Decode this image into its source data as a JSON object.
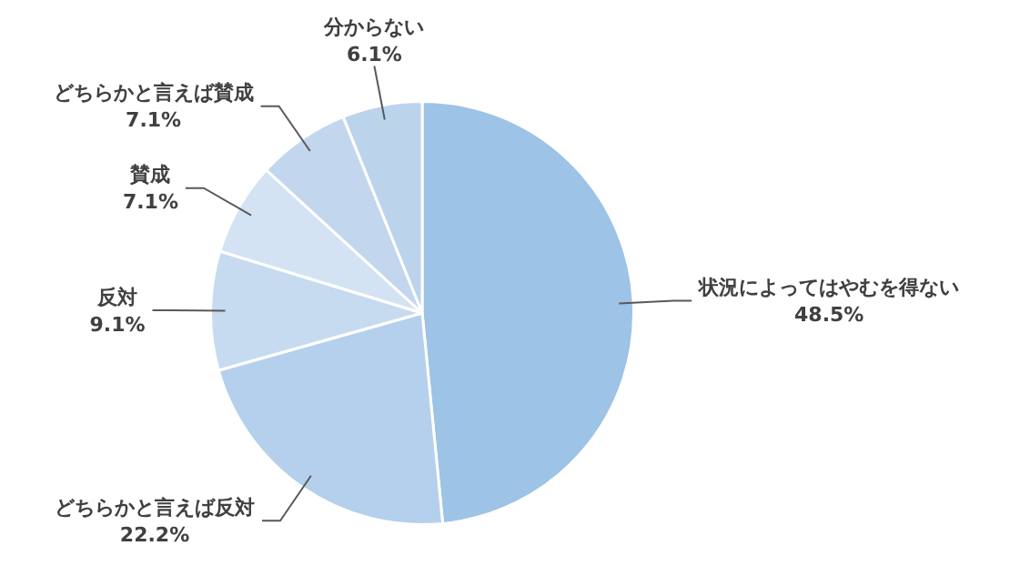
{
  "chart_data": {
    "type": "pie",
    "categories": [
      "状況によってはやむを得ない",
      "どちらかと言えば反対",
      "反対",
      "賛成",
      "どちらかと言えば賛成",
      "分からない"
    ],
    "values": [
      48.5,
      22.2,
      9.1,
      7.1,
      7.1,
      6.1
    ],
    "value_labels": [
      "48.5%",
      "22.2%",
      "9.1%",
      "7.1%",
      "7.1%",
      "6.1%"
    ],
    "colors": [
      "#9dc3e6",
      "#b5d0ec",
      "#c6dbf0",
      "#d3e3f4",
      "#c2d7ee",
      "#bcd3ec"
    ],
    "legend": false
  }
}
